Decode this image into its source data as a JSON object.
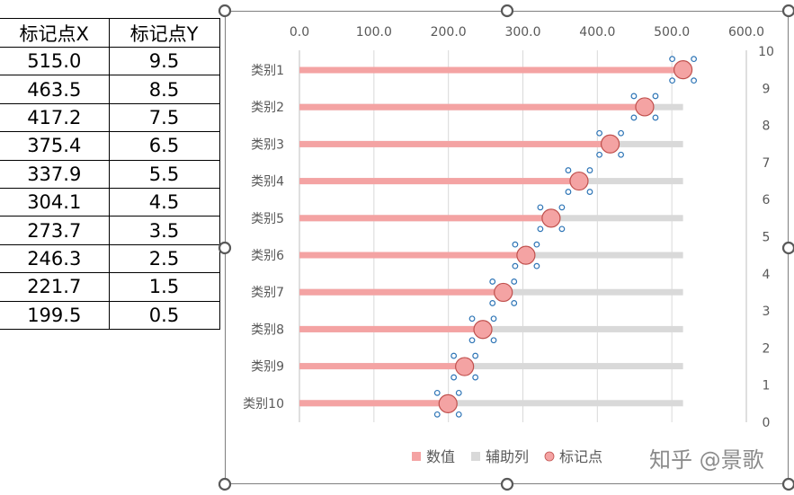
{
  "table": {
    "headers": [
      "标记点X",
      "标记点Y"
    ],
    "rows": [
      [
        "515.0",
        "9.5"
      ],
      [
        "463.5",
        "8.5"
      ],
      [
        "417.2",
        "7.5"
      ],
      [
        "375.4",
        "6.5"
      ],
      [
        "337.9",
        "5.5"
      ],
      [
        "304.1",
        "4.5"
      ],
      [
        "273.7",
        "3.5"
      ],
      [
        "246.3",
        "2.5"
      ],
      [
        "221.7",
        "1.5"
      ],
      [
        "199.5",
        "0.5"
      ]
    ]
  },
  "chart_data": {
    "type": "bar",
    "orientation": "horizontal",
    "categories": [
      "类别1",
      "类别2",
      "类别3",
      "类别4",
      "类别5",
      "类别6",
      "类别7",
      "类别8",
      "类别9",
      "类别10"
    ],
    "series": [
      {
        "name": "数值",
        "values": [
          515.0,
          463.5,
          417.2,
          375.4,
          337.9,
          304.1,
          273.7,
          246.3,
          221.7,
          199.5
        ]
      },
      {
        "name": "辅助列",
        "values": [
          515,
          515,
          515,
          515,
          515,
          515,
          515,
          515,
          515,
          515
        ]
      },
      {
        "name": "标记点",
        "type": "scatter",
        "x": [
          515.0,
          463.5,
          417.2,
          375.4,
          337.9,
          304.1,
          273.7,
          246.3,
          221.7,
          199.5
        ],
        "y": [
          9.5,
          8.5,
          7.5,
          6.5,
          5.5,
          4.5,
          3.5,
          2.5,
          1.5,
          0.5
        ]
      }
    ],
    "x_ticks": [
      "0.0",
      "100.0",
      "200.0",
      "300.0",
      "400.0",
      "500.0",
      "600.0"
    ],
    "xlim": [
      0,
      600
    ],
    "y2_ticks": [
      "0",
      "1",
      "2",
      "3",
      "4",
      "5",
      "6",
      "7",
      "8",
      "9",
      "10"
    ],
    "y2lim": [
      0,
      10
    ],
    "legend": [
      "数值",
      "辅助列",
      "标记点"
    ],
    "legend_position": "bottom",
    "colors": {
      "value": "#f4a3a3",
      "helper": "#d9d9d9",
      "marker": "#f4a3a3",
      "marker_edge": "#c0504d",
      "selection": "#2e75b6"
    }
  },
  "watermark": "知乎 @景歌"
}
